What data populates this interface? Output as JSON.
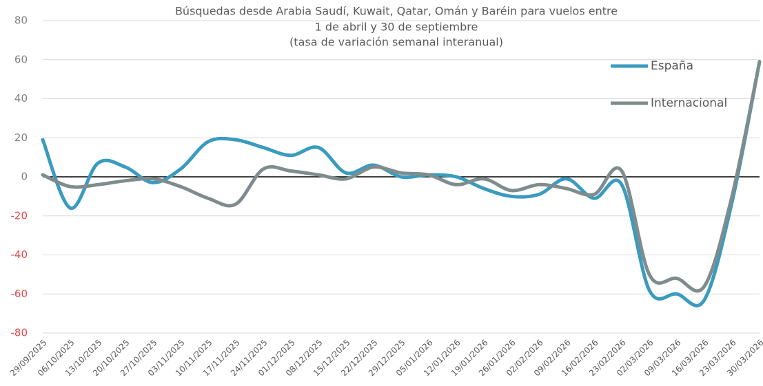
{
  "chart_data": {
    "type": "line",
    "title": [
      "Búsquedas desde Arabia Saudí, Kuwait, Qatar, Omán y Baréin para vuelos entre",
      "1 de abril y 30 de septiembre",
      "(tasa de variación semanal interanual)"
    ],
    "categories": [
      "29/09/2025",
      "06/10/2025",
      "13/10/2025",
      "20/10/2025",
      "27/10/2025",
      "03/11/2025",
      "10/11/2025",
      "17/11/2025",
      "24/11/2025",
      "01/12/2025",
      "08/12/2025",
      "15/12/2025",
      "22/12/2025",
      "29/12/2025",
      "05/01/2026",
      "12/01/2026",
      "19/01/2026",
      "26/01/2026",
      "02/02/2026",
      "09/02/2026",
      "16/02/2026",
      "23/02/2026",
      "02/03/2026",
      "09/03/2026",
      "16/03/2026",
      "23/03/2026",
      "30/03/2026"
    ],
    "series": [
      {
        "name": "España",
        "color": "#3a9bbf",
        "values": [
          19,
          -16,
          7,
          5,
          -3,
          4,
          18,
          19,
          15,
          11,
          15,
          2,
          6,
          0,
          1,
          0,
          -6,
          -10,
          -9,
          -1,
          -11,
          -4,
          -58,
          -60,
          -63,
          -13,
          59
        ]
      },
      {
        "name": "Internacional",
        "color": "#7f8c8d",
        "values": [
          1,
          -5,
          -4,
          -2,
          -1,
          -5,
          -11,
          -14,
          4,
          3,
          1,
          -1,
          5,
          2,
          1,
          -4,
          -1,
          -7,
          -4,
          -6,
          -9,
          3,
          -50,
          -52,
          -56,
          -10,
          59
        ]
      }
    ],
    "ylim": [
      -80,
      80
    ],
    "yticks": [
      -80,
      -60,
      -40,
      -20,
      0,
      20,
      40,
      60,
      80
    ],
    "grid": true,
    "tick_color": "#808080",
    "negative_tick_color": "#e0474c",
    "legend": "upper right"
  }
}
